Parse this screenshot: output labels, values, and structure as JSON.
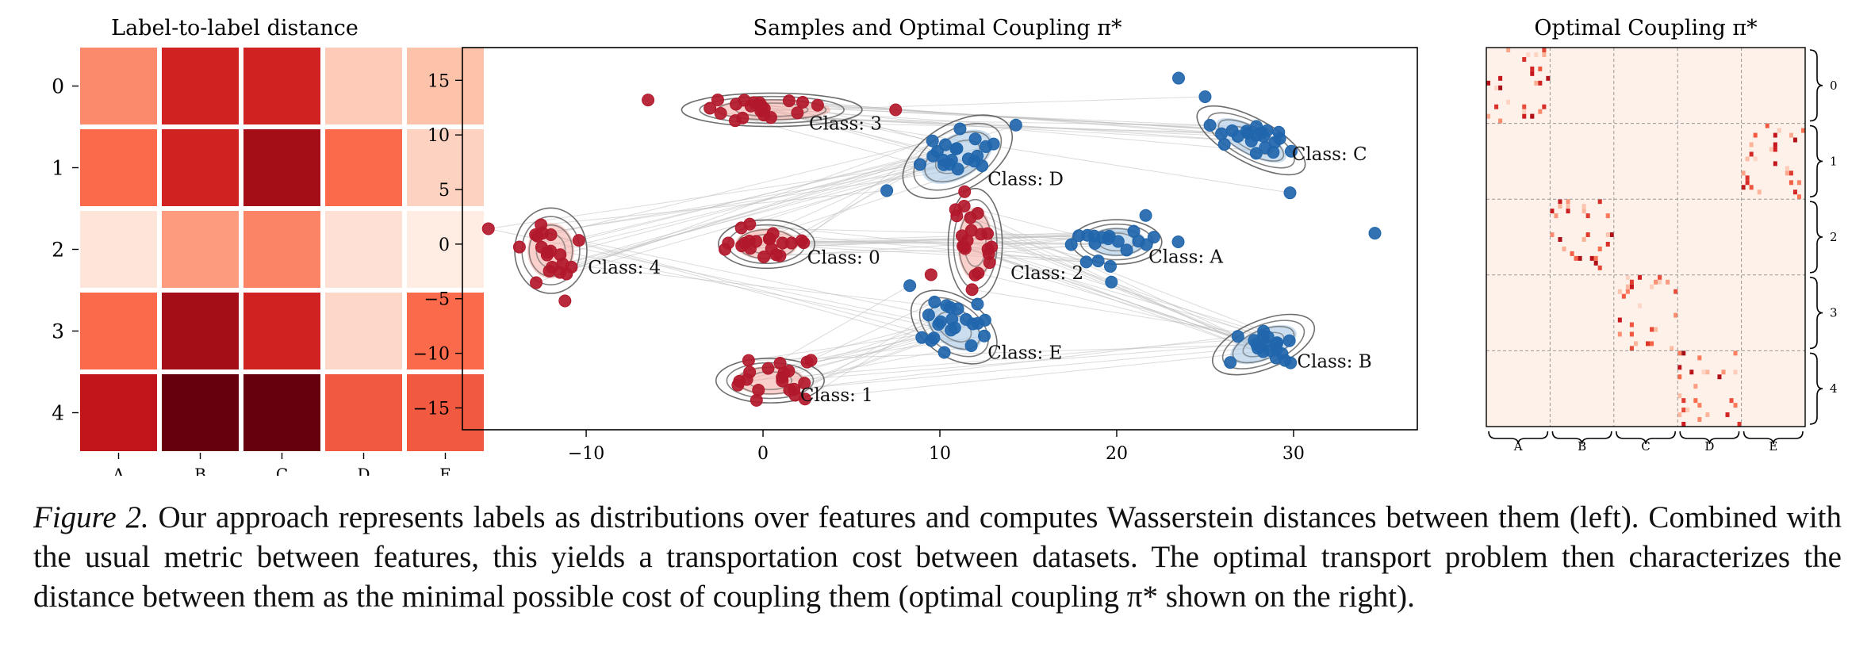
{
  "figure": {
    "panels": {
      "heatmap": {
        "title": "Label-to-label distance",
        "row_labels": [
          "0",
          "1",
          "2",
          "3",
          "4"
        ],
        "col_labels": [
          "A",
          "B",
          "C",
          "D",
          "E"
        ]
      },
      "scatter": {
        "title": "Samples and Optimal Coupling π*",
        "x_ticks": [
          "−10",
          "0",
          "10",
          "20",
          "30"
        ],
        "y_ticks": [
          "15",
          "10",
          "5",
          "0",
          "−5",
          "−10",
          "−15"
        ],
        "class_labels": [
          "Class: 0",
          "Class: 1",
          "Class: 2",
          "Class: 3",
          "Class: 4",
          "Class: A",
          "Class: B",
          "Class: C",
          "Class: D",
          "Class: E"
        ]
      },
      "coupling": {
        "title": "Optimal Coupling π*",
        "row_groups": [
          "0",
          "1",
          "2",
          "3",
          "4"
        ],
        "col_groups": [
          "A",
          "B",
          "C",
          "D",
          "E"
        ]
      }
    }
  },
  "chart_data": [
    {
      "type": "heatmap",
      "title": "Label-to-label distance",
      "rows": [
        "0",
        "1",
        "2",
        "3",
        "4"
      ],
      "columns": [
        "A",
        "B",
        "C",
        "D",
        "E"
      ],
      "colormap": "Reds",
      "values": [
        [
          0.4,
          0.72,
          0.72,
          0.18,
          0.22
        ],
        [
          0.5,
          0.72,
          0.85,
          0.5,
          0.15
        ],
        [
          0.07,
          0.35,
          0.42,
          0.09,
          0.04
        ],
        [
          0.5,
          0.85,
          0.72,
          0.13,
          0.5
        ],
        [
          0.78,
          1.0,
          1.0,
          0.55,
          0.55
        ]
      ]
    },
    {
      "type": "scatter",
      "title": "Samples and Optimal Coupling π*",
      "xlim": [
        -17,
        37
      ],
      "ylim": [
        -17,
        18
      ],
      "x_ticks": [
        -10,
        0,
        10,
        20,
        30
      ],
      "y_ticks": [
        -15,
        -10,
        -5,
        0,
        5,
        10,
        15
      ],
      "series": [
        {
          "color": "#b2182b",
          "classes": [
            {
              "name": "Class: 0",
              "center": [
                0.2,
                0.0
              ],
              "spread": [
                1.6,
                1.3
              ]
            },
            {
              "name": "Class: 1",
              "center": [
                0.4,
                -12.5
              ],
              "spread": [
                1.8,
                1.2
              ]
            },
            {
              "name": "Class: 2",
              "center": [
                12.0,
                0.0
              ],
              "spread": [
                0.9,
                3.0
              ]
            },
            {
              "name": "Class: 3",
              "center": [
                0.5,
                12.3
              ],
              "spread": [
                3.0,
                0.9
              ]
            },
            {
              "name": "Class: 4",
              "center": [
                -12.0,
                -0.6
              ],
              "spread": [
                1.2,
                2.3
              ]
            }
          ]
        },
        {
          "color": "#2166ac",
          "classes": [
            {
              "name": "Class: A",
              "center": [
                20.0,
                0.2
              ],
              "spread": [
                1.5,
                1.2
              ]
            },
            {
              "name": "Class: B",
              "center": [
                28.3,
                -9.2
              ],
              "spread": [
                1.8,
                1.3
              ]
            },
            {
              "name": "Class: C",
              "center": [
                27.6,
                9.5
              ],
              "spread": [
                2.0,
                1.2
              ]
            },
            {
              "name": "Class: D",
              "center": [
                11.0,
                8.0
              ],
              "spread": [
                2.0,
                1.8
              ]
            },
            {
              "name": "Class: E",
              "center": [
                10.8,
                -7.6
              ],
              "spread": [
                1.6,
                1.6
              ]
            }
          ]
        }
      ]
    },
    {
      "type": "heatmap",
      "title": "Optimal Coupling π*",
      "row_groups": [
        "0",
        "1",
        "2",
        "3",
        "4"
      ],
      "col_groups": [
        "A",
        "B",
        "C",
        "D",
        "E"
      ],
      "block_assignment": {
        "0": "A",
        "1": "E",
        "2": "B",
        "3": "C",
        "4": "D"
      },
      "colormap": "Reds"
    }
  ],
  "caption": {
    "label": "Figure 2.",
    "text": " Our approach represents labels as distributions over features and computes Wasserstein distances between them (left). Combined with the usual metric between features, this yields a transportation cost between datasets. The optimal transport problem then characterizes the distance between them as the minimal possible cost of coupling them (optimal coupling π* shown on the right)."
  }
}
